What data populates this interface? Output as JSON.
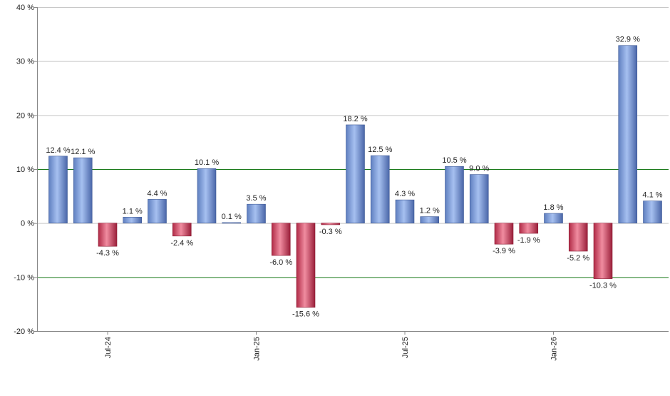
{
  "chart_data": {
    "type": "bar",
    "title": "",
    "xlabel": "",
    "ylabel": "",
    "ylim": [
      -20,
      40
    ],
    "yticks": [
      -20,
      -10,
      0,
      10,
      20,
      30,
      40
    ],
    "ytick_labels": [
      "-20 %",
      "-10 %",
      "0 %",
      "10 %",
      "20 %",
      "30 %",
      "40 %"
    ],
    "x_tick_labels": [
      {
        "label": "Jul-24",
        "index": 2
      },
      {
        "label": "Jan-25",
        "index": 8
      },
      {
        "label": "Jul-25",
        "index": 14
      },
      {
        "label": "Jan-26",
        "index": 20
      }
    ],
    "values": [
      12.4,
      12.1,
      -4.3,
      1.1,
      4.4,
      -2.4,
      10.1,
      0.1,
      3.5,
      -6.0,
      -15.6,
      -0.3,
      18.2,
      12.5,
      4.3,
      1.2,
      10.5,
      9.0,
      -3.9,
      -1.9,
      1.8,
      -5.2,
      -10.3,
      32.9,
      4.1
    ],
    "value_labels": [
      "12.4 %",
      "12.1 %",
      "-4.3 %",
      "1.1 %",
      "4.4 %",
      "-2.4 %",
      "10.1 %",
      "0.1 %",
      "3.5 %",
      "-6.0 %",
      "-15.6 %",
      "-0.3 %",
      "18.2 %",
      "12.5 %",
      "4.3 %",
      "1.2 %",
      "10.5 %",
      "9.0 %",
      "-3.9 %",
      "-1.9 %",
      "1.8 %",
      "-5.2 %",
      "-10.3 %",
      "32.9 %",
      "4.1 %"
    ],
    "reference_lines": [
      10,
      -10
    ],
    "grid": true,
    "legend": "none",
    "colors": {
      "positive": "#7f9fdc",
      "negative": "#c8445f",
      "reference_line": "#1a7a1a",
      "grid": "#c8c8c8",
      "axis": "#888888",
      "text": "#222222"
    }
  }
}
